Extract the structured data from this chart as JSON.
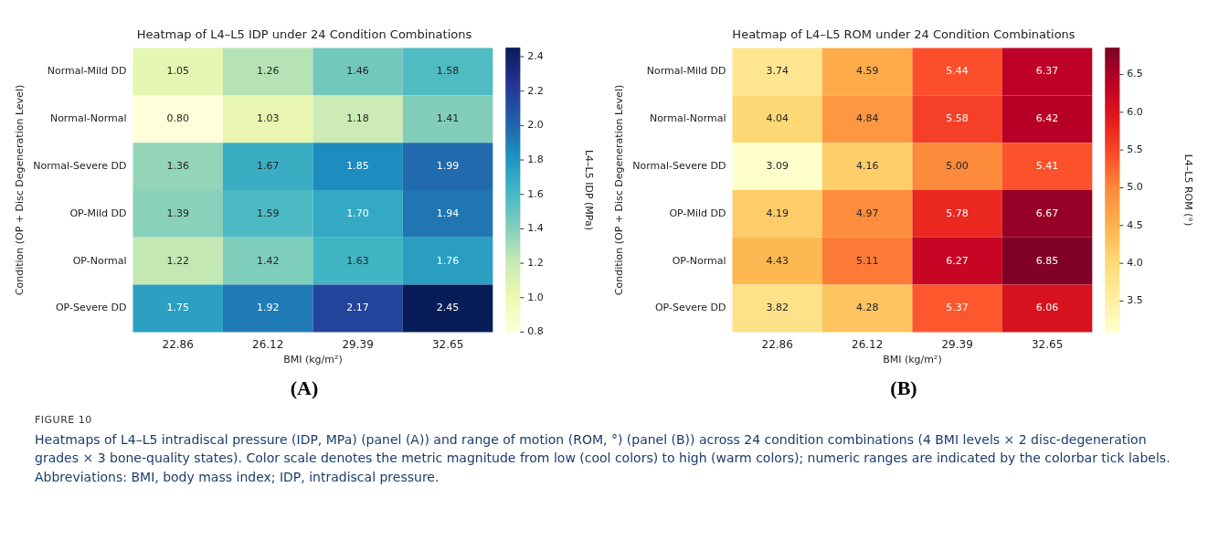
{
  "chart_data": [
    {
      "type": "heatmap",
      "title": "Heatmap of L4–L5 IDP under 24 Condition Combinations",
      "xlabel": "BMI (kg/m²)",
      "ylabel": "Condition (OP + Disc Degeneration Level)",
      "clabel": "L4–L5 IDP (MPa)",
      "categories": [
        "22.86",
        "26.12",
        "29.39",
        "32.65"
      ],
      "y_categories": [
        "Normal-Mild DD",
        "Normal-Normal",
        "Normal-Severe DD",
        "OP-Mild DD",
        "OP-Normal",
        "OP-Severe DD"
      ],
      "cells": [
        [
          1.05,
          1.26,
          1.46,
          1.58
        ],
        [
          0.8,
          1.03,
          1.18,
          1.41
        ],
        [
          1.36,
          1.67,
          1.85,
          1.99
        ],
        [
          1.39,
          1.59,
          1.7,
          1.94
        ],
        [
          1.22,
          1.42,
          1.63,
          1.76
        ],
        [
          1.75,
          1.92,
          2.17,
          2.45
        ]
      ],
      "cell_labels": [
        [
          "1.05",
          "1.26",
          "1.46",
          "1.58"
        ],
        [
          "0.80",
          "1.03",
          "1.18",
          "1.41"
        ],
        [
          "1.36",
          "1.67",
          "1.85",
          "1.99"
        ],
        [
          "1.39",
          "1.59",
          "1.70",
          "1.94"
        ],
        [
          "1.22",
          "1.42",
          "1.63",
          "1.76"
        ],
        [
          "1.75",
          "1.92",
          "2.17",
          "2.45"
        ]
      ],
      "clim": [
        0.8,
        2.45
      ],
      "cticks": [
        {
          "value": 0.8,
          "label": "0.8"
        },
        {
          "value": 1.0,
          "label": "1.0"
        },
        {
          "value": 1.2,
          "label": "1.2"
        },
        {
          "value": 1.4,
          "label": "1.4"
        },
        {
          "value": 1.6,
          "label": "1.6"
        },
        {
          "value": 1.8,
          "label": "1.8"
        },
        {
          "value": 2.0,
          "label": "2.0"
        },
        {
          "value": 2.2,
          "label": "2.2"
        },
        {
          "value": 2.4,
          "label": "2.4"
        }
      ],
      "data_labels": true,
      "annotations": [
        "(A)",
        "FIGURE 10",
        "Heatmaps of L4–L5 intradiscal pressure (IDP, MPa) (panel (A)) and range of motion (ROM, °) (panel (B)) across 24 condition combinations (4 BMI levels × 2 disc-degeneration grades × 3 bone-quality states). Color scale denotes the metric magnitude from low (cool colors) to high (warm colors); numeric ranges are indicated by the colorbar tick labels. Abbreviations: BMI, body mass index; IDP, intradiscal pressure."
      ]
    },
    {
      "type": "heatmap",
      "title": "Heatmap of L4–L5 ROM under 24 Condition Combinations",
      "xlabel": "BMI (kg/m²)",
      "ylabel": "Condition (OP + Disc Degeneration Level)",
      "clabel": "L4–L5 ROM (°)",
      "categories": [
        "22.86",
        "26.12",
        "29.39",
        "32.65"
      ],
      "y_categories": [
        "Normal-Mild DD",
        "Normal-Normal",
        "Normal-Severe DD",
        "OP-Mild DD",
        "OP-Normal",
        "OP-Severe DD"
      ],
      "cells": [
        [
          3.74,
          4.59,
          5.44,
          6.37
        ],
        [
          4.04,
          4.84,
          5.58,
          6.42
        ],
        [
          3.09,
          4.16,
          5.0,
          5.41
        ],
        [
          4.19,
          4.97,
          5.78,
          6.67
        ],
        [
          4.43,
          5.11,
          6.27,
          6.85
        ],
        [
          3.82,
          4.28,
          5.37,
          6.06
        ]
      ],
      "cell_labels": [
        [
          "3.74",
          "4.59",
          "5.44",
          "6.37"
        ],
        [
          "4.04",
          "4.84",
          "5.58",
          "6.42"
        ],
        [
          "3.09",
          "4.16",
          "5.00",
          "5.41"
        ],
        [
          "4.19",
          "4.97",
          "5.78",
          "6.67"
        ],
        [
          "4.43",
          "5.11",
          "6.27",
          "6.85"
        ],
        [
          "3.82",
          "4.28",
          "5.37",
          "6.06"
        ]
      ],
      "clim": [
        3.09,
        6.85
      ],
      "cticks": [
        {
          "value": 3.5,
          "label": "3.5"
        },
        {
          "value": 4.0,
          "label": "4.0"
        },
        {
          "value": 4.5,
          "label": "4.5"
        },
        {
          "value": 5.0,
          "label": "5.0"
        },
        {
          "value": 5.5,
          "label": "5.5"
        },
        {
          "value": 6.0,
          "label": "6.0"
        },
        {
          "value": 6.5,
          "label": "6.5"
        }
      ],
      "data_labels": true,
      "annotations": [
        "(B)"
      ]
    }
  ]
}
